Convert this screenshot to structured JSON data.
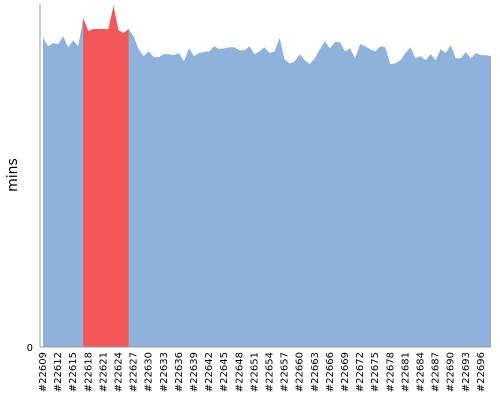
{
  "chart_data": {
    "type": "area",
    "ylabel": "mins",
    "xlabel": "",
    "ylim": [
      0,
      100
    ],
    "y_ticks": [
      0
    ],
    "x_start": 22609,
    "x_end": 22698,
    "x_tick_labels": [
      "#22609",
      "#22612",
      "#22615",
      "#22618",
      "#22621",
      "#22624",
      "#22627",
      "#22630",
      "#22633",
      "#22636",
      "#22639",
      "#22642",
      "#22645",
      "#22648",
      "#22651",
      "#22654",
      "#22657",
      "#22660",
      "#22663",
      "#22666",
      "#22669",
      "#22672",
      "#22675",
      "#22678",
      "#22681",
      "#22684",
      "#22687",
      "#22690",
      "#22693",
      "#22696"
    ],
    "values": [
      90.3,
      87.7,
      88.6,
      88.3,
      90.6,
      87.4,
      89.4,
      87.7,
      95.9,
      92.1,
      92.7,
      92.7,
      92.7,
      92.7,
      99.4,
      92.4,
      91.5,
      92.7,
      90.6,
      86.8,
      84.8,
      86.2,
      84.5,
      84.5,
      85.4,
      85.4,
      85.1,
      85.7,
      83.3,
      87.1,
      84.8,
      85.7,
      86.0,
      86.2,
      87.7,
      86.8,
      87.1,
      87.4,
      87.4,
      86.5,
      86.5,
      87.7,
      85.4,
      86.2,
      87.4,
      85.7,
      86.2,
      90.1,
      83.9,
      82.7,
      83.3,
      85.4,
      83.6,
      82.5,
      84.2,
      86.8,
      89.1,
      87.1,
      88.9,
      88.9,
      86.2,
      87.1,
      84.2,
      88.3,
      87.7,
      86.8,
      86.2,
      87.7,
      87.4,
      82.5,
      82.7,
      83.6,
      85.7,
      87.4,
      84.2,
      84.8,
      83.6,
      85.4,
      83.6,
      86.8,
      85.7,
      88.0,
      84.2,
      84.2,
      86.0,
      84.2,
      85.7,
      85.1,
      85.1,
      84.8
    ],
    "highlight_range": [
      "#22617",
      "#22626"
    ],
    "colors": {
      "area": "#8fb2dc",
      "highlight": "#f25656",
      "axis": "#999999"
    }
  }
}
